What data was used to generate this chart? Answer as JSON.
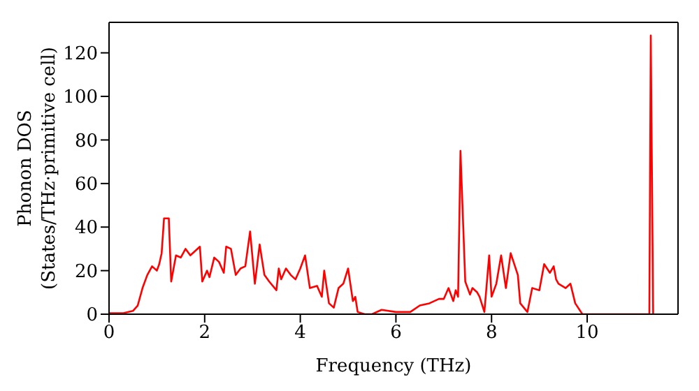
{
  "chart_data": {
    "type": "line",
    "xlabel": "Frequency (THz)",
    "ylabel": "Phonon DOS\n(States/THz·primitive cell)",
    "xlim": [
      0,
      11.9
    ],
    "ylim": [
      0,
      134
    ],
    "xticks": [
      0,
      2,
      4,
      6,
      8,
      10
    ],
    "yticks": [
      0,
      20,
      40,
      60,
      80,
      100,
      120
    ],
    "grid": false,
    "legend": false,
    "marker": "none",
    "line_style": "solid",
    "x": [
      0,
      0.3,
      0.5,
      0.6,
      0.7,
      0.8,
      0.9,
      1.0,
      1.05,
      1.1,
      1.15,
      1.25,
      1.3,
      1.4,
      1.5,
      1.6,
      1.7,
      1.8,
      1.9,
      1.95,
      2.05,
      2.1,
      2.2,
      2.3,
      2.4,
      2.45,
      2.55,
      2.65,
      2.75,
      2.85,
      2.95,
      3.05,
      3.15,
      3.25,
      3.35,
      3.5,
      3.55,
      3.6,
      3.7,
      3.8,
      3.9,
      4.0,
      4.1,
      4.2,
      4.35,
      4.45,
      4.5,
      4.6,
      4.7,
      4.8,
      4.9,
      5.0,
      5.1,
      5.15,
      5.2,
      5.35,
      5.5,
      5.7,
      6.0,
      6.3,
      6.5,
      6.7,
      6.9,
      7.0,
      7.1,
      7.2,
      7.25,
      7.3,
      7.35,
      7.45,
      7.55,
      7.6,
      7.7,
      7.75,
      7.85,
      7.95,
      8.0,
      8.1,
      8.2,
      8.3,
      8.4,
      8.55,
      8.6,
      8.75,
      8.85,
      9.0,
      9.1,
      9.22,
      9.3,
      9.35,
      9.4,
      9.55,
      9.65,
      9.75,
      9.9,
      10.0,
      11.3,
      11.33,
      11.38
    ],
    "series": [
      {
        "color": "#ff0000",
        "values": [
          0.5,
          0.5,
          1.5,
          4,
          12,
          18,
          22,
          20,
          23,
          28,
          44,
          44,
          15,
          27,
          26,
          30,
          27,
          29,
          31,
          15,
          20,
          17,
          26,
          24,
          19,
          31,
          30,
          18,
          21,
          22,
          38,
          14,
          32,
          18,
          15,
          11,
          21,
          16,
          21,
          18,
          16,
          21,
          27,
          12,
          13,
          8,
          20,
          5,
          3,
          12,
          14,
          21,
          6,
          8,
          1,
          0,
          0,
          2,
          1,
          1,
          4,
          5,
          7,
          7,
          12,
          6,
          11,
          8,
          75,
          15,
          9,
          12,
          10,
          8,
          1,
          27,
          8,
          14,
          27,
          12,
          28,
          18,
          5,
          1,
          12,
          11,
          23,
          19,
          22,
          16,
          14,
          12,
          14,
          5,
          0,
          0,
          0,
          128,
          0
        ]
      }
    ]
  }
}
